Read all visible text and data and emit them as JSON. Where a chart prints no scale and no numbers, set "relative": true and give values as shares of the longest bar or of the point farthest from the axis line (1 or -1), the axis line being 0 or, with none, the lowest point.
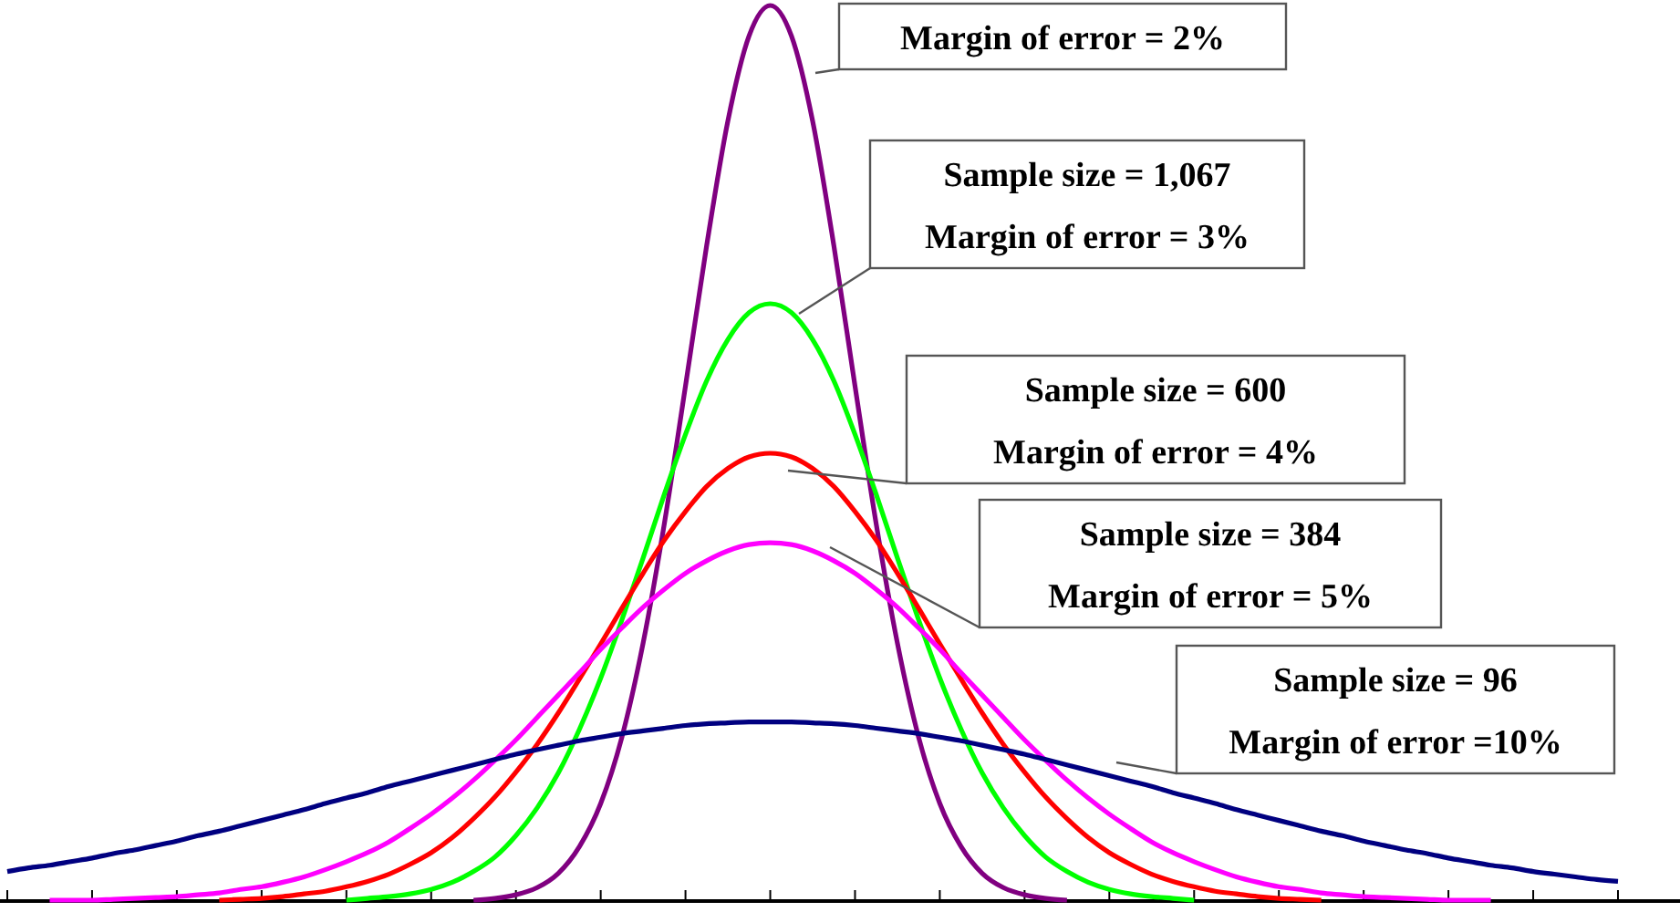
{
  "chart_data": {
    "type": "line",
    "relative": true,
    "marker": "none",
    "line_style": "solid",
    "categories": [
      null,
      null,
      null,
      null,
      null,
      null,
      null,
      null,
      null,
      null,
      null,
      null,
      null,
      null,
      null,
      null,
      null,
      null,
      null,
      null,
      null,
      null,
      null,
      null,
      null,
      null,
      null,
      null,
      null,
      null,
      null,
      null,
      null,
      null,
      null,
      null,
      null,
      null,
      null,
      null,
      null,
      null,
      null,
      null,
      null,
      null,
      null,
      null,
      null,
      null,
      null,
      null,
      null,
      null,
      null,
      null,
      null,
      null,
      null,
      null,
      null,
      null,
      null,
      null,
      null,
      null,
      null,
      null,
      null,
      null,
      null,
      null,
      null,
      null,
      null,
      null,
      null
    ],
    "series": [
      {
        "color": "#800080",
        "values": [
          null,
          null,
          null,
          null,
          null,
          null,
          null,
          null,
          null,
          null,
          null,
          null,
          null,
          null,
          null,
          null,
          null,
          null,
          null,
          null,
          null,
          null,
          0.001,
          0.003,
          0.007,
          0.015,
          0.031,
          0.061,
          0.109,
          0.183,
          0.288,
          0.421,
          0.575,
          0.732,
          0.871,
          0.966,
          1,
          0.966,
          0.871,
          0.732,
          0.575,
          0.421,
          0.288,
          0.183,
          0.109,
          0.061,
          0.031,
          0.015,
          0.007,
          0.003,
          0.001,
          null,
          null,
          null,
          null,
          null,
          null,
          null,
          null,
          null,
          null,
          null,
          null,
          null,
          null,
          null,
          null,
          null,
          null,
          null,
          null,
          null,
          null,
          null,
          null,
          null,
          null
        ]
      },
      {
        "color": "#00ff00",
        "values": [
          null,
          null,
          null,
          null,
          null,
          null,
          null,
          null,
          null,
          null,
          null,
          null,
          null,
          null,
          null,
          null,
          0.001,
          0.003,
          0.005,
          0.008,
          0.013,
          0.021,
          0.033,
          0.049,
          0.073,
          0.104,
          0.143,
          0.192,
          0.249,
          0.314,
          0.383,
          0.454,
          0.521,
          0.581,
          0.627,
          0.657,
          0.667,
          0.657,
          0.627,
          0.581,
          0.521,
          0.454,
          0.383,
          0.314,
          0.249,
          0.192,
          0.143,
          0.104,
          0.073,
          0.049,
          0.033,
          0.021,
          0.013,
          0.008,
          0.005,
          0.003,
          0.001,
          null,
          null,
          null,
          null,
          null,
          null,
          null,
          null,
          null,
          null,
          null,
          null,
          null,
          null,
          null,
          null,
          null,
          null,
          null,
          null
        ]
      },
      {
        "color": "#ff0000",
        "values": [
          null,
          null,
          null,
          null,
          null,
          null,
          null,
          null,
          null,
          null,
          0.001,
          0.002,
          0.003,
          0.005,
          0.008,
          0.011,
          0.016,
          0.022,
          0.03,
          0.041,
          0.054,
          0.071,
          0.092,
          0.116,
          0.144,
          0.175,
          0.21,
          0.248,
          0.287,
          0.327,
          0.366,
          0.403,
          0.435,
          0.463,
          0.483,
          0.496,
          0.5,
          0.496,
          0.483,
          0.463,
          0.435,
          0.403,
          0.366,
          0.327,
          0.287,
          0.248,
          0.21,
          0.175,
          0.144,
          0.116,
          0.092,
          0.071,
          0.054,
          0.041,
          0.03,
          0.022,
          0.016,
          0.011,
          0.008,
          0.005,
          0.003,
          0.002,
          0.001,
          null,
          null,
          null,
          null,
          null,
          null,
          null,
          null,
          null,
          null,
          null,
          null,
          null,
          null
        ]
      },
      {
        "color": "#ff00ff",
        "values": [
          null,
          null,
          0.001,
          0.001,
          0.001,
          0.002,
          0.003,
          0.004,
          0.005,
          0.007,
          0.009,
          0.013,
          0.016,
          0.021,
          0.027,
          0.035,
          0.044,
          0.054,
          0.066,
          0.081,
          0.097,
          0.115,
          0.135,
          0.157,
          0.18,
          0.205,
          0.23,
          0.255,
          0.281,
          0.305,
          0.328,
          0.348,
          0.366,
          0.38,
          0.391,
          0.398,
          0.4,
          0.398,
          0.391,
          0.38,
          0.366,
          0.348,
          0.328,
          0.305,
          0.281,
          0.255,
          0.23,
          0.205,
          0.18,
          0.157,
          0.135,
          0.115,
          0.097,
          0.081,
          0.066,
          0.054,
          0.044,
          0.035,
          0.027,
          0.021,
          0.016,
          0.013,
          0.009,
          0.007,
          0.005,
          0.004,
          0.003,
          0.002,
          0.001,
          0.001,
          0.001,
          null,
          null,
          null,
          null,
          null,
          null
        ]
      },
      {
        "color": "#000080",
        "values": [
          0.033,
          0.037,
          0.04,
          0.044,
          0.048,
          0.053,
          0.057,
          0.062,
          0.067,
          0.073,
          0.078,
          0.084,
          0.09,
          0.096,
          0.102,
          0.109,
          0.115,
          0.121,
          0.128,
          0.134,
          0.14,
          0.146,
          0.152,
          0.158,
          0.164,
          0.169,
          0.174,
          0.179,
          0.183,
          0.187,
          0.19,
          0.193,
          0.196,
          0.198,
          0.199,
          0.2,
          0.2,
          0.2,
          0.199,
          0.198,
          0.196,
          0.193,
          0.19,
          0.187,
          0.183,
          0.179,
          0.174,
          0.169,
          0.164,
          0.158,
          0.152,
          0.146,
          0.14,
          0.134,
          0.128,
          0.121,
          0.115,
          0.109,
          0.102,
          0.096,
          0.09,
          0.084,
          0.078,
          0.073,
          0.067,
          0.062,
          0.057,
          0.053,
          0.048,
          0.044,
          0.04,
          0.037,
          0.033,
          0.03,
          0.027,
          0.024,
          0.022
        ]
      }
    ],
    "annotations": [
      "Margin of error = 2%",
      "Sample size = 1,067\nMargin of error = 3%",
      "Sample size = 600\nMargin of error = 4%",
      "Sample size = 384\nMargin of error = 5%",
      "Sample size = 96\nMargin of error =10%"
    ]
  }
}
